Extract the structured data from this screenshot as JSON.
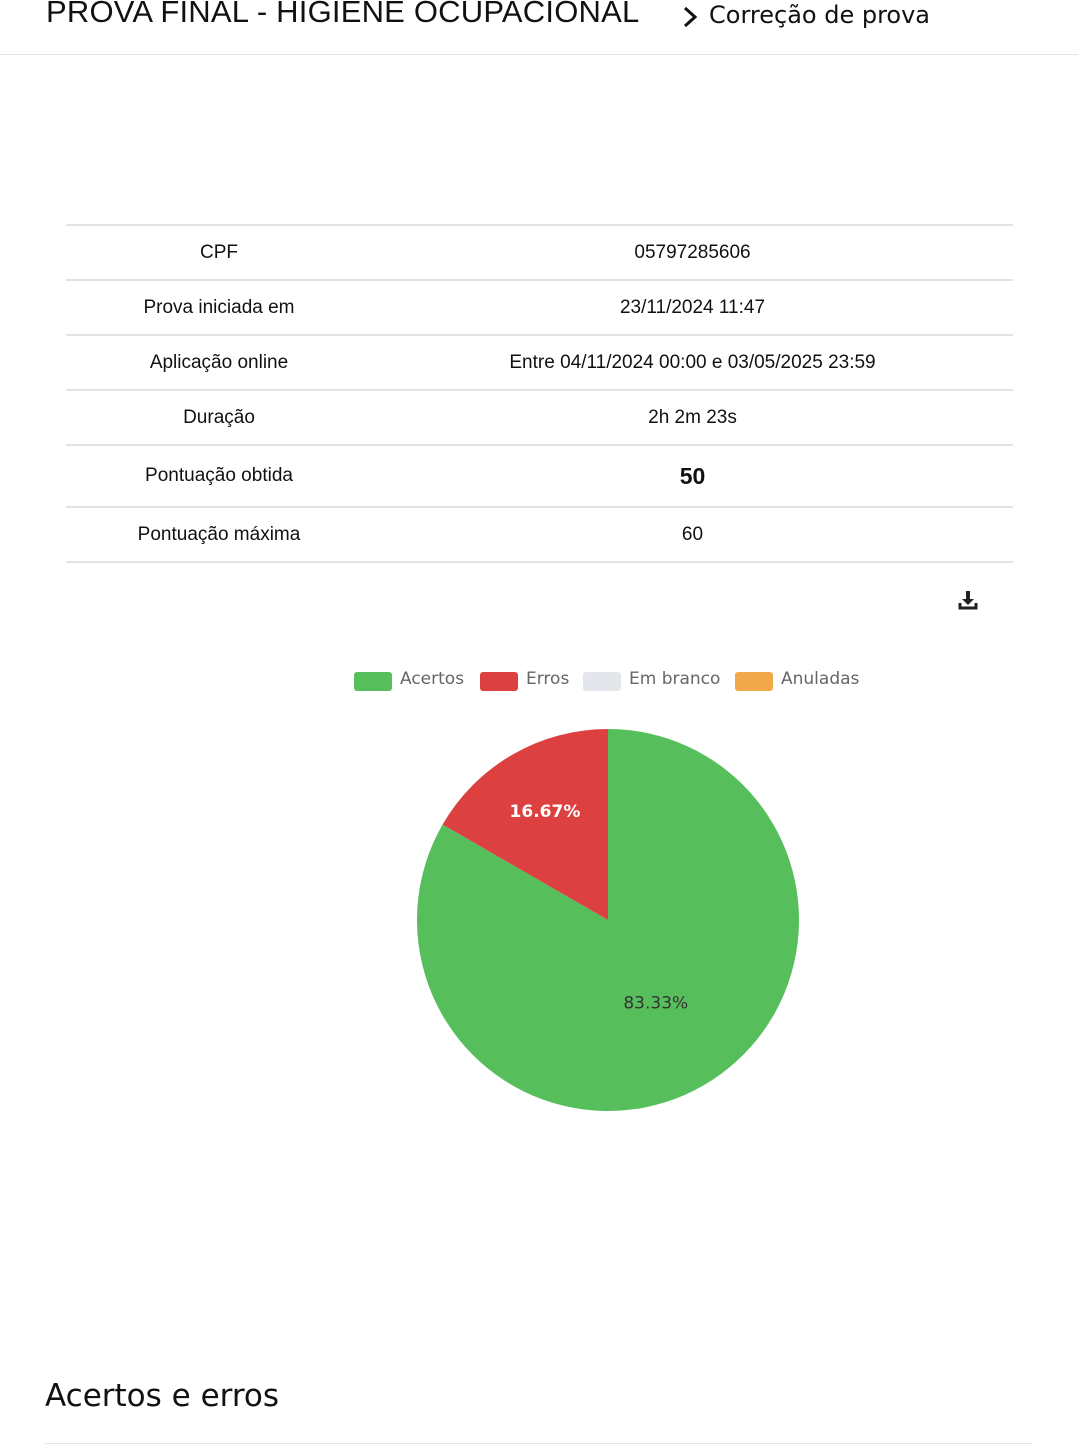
{
  "header": {
    "title": "PROVA FINAL - HIGIENE OCUPACIONAL",
    "breadcrumb": "Correção de prova"
  },
  "info_table": [
    {
      "label": "CPF",
      "value": "05797285606"
    },
    {
      "label": "Prova iniciada em",
      "value": "23/11/2024 11:47"
    },
    {
      "label": "Aplicação online",
      "value": "Entre 04/11/2024 00:00 e 03/05/2025 23:59"
    },
    {
      "label": "Duração",
      "value": "2h 2m 23s"
    },
    {
      "label": "Pontuação obtida",
      "value": "50"
    },
    {
      "label": "Pontuação máxima",
      "value": "60"
    }
  ],
  "icons": {
    "download": "download-icon"
  },
  "chart_data": {
    "type": "pie",
    "categories": [
      "Acertos",
      "Erros",
      "Em branco",
      "Anuladas"
    ],
    "values": [
      83.33,
      16.67,
      0,
      0
    ],
    "labels": [
      "83.33%",
      "16.67%",
      "",
      ""
    ],
    "colors": [
      "#57be5c",
      "#dc4040",
      "#e3e7eb",
      "#f0a84a"
    ],
    "legend": "top"
  },
  "section": {
    "title": "Acertos e erros"
  }
}
